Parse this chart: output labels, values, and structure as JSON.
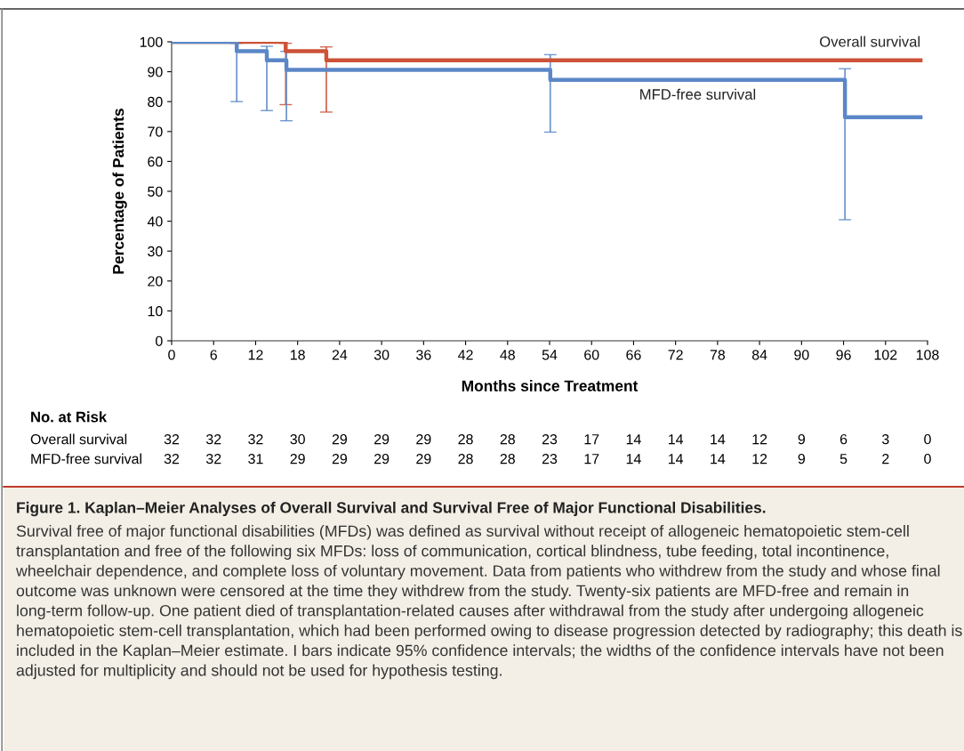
{
  "chart_data": {
    "type": "step",
    "title": "Figure 1. Kaplan–Meier Analyses of Overall Survival and Survival Free of Major Functional Disabilities.",
    "xlabel": "Months since Treatment",
    "ylabel": "Percentage of Patients",
    "series": [
      {
        "name": "Overall survival",
        "color": "#cc5238",
        "x": [
          0,
          16.3,
          22.1,
          107
        ],
        "values": [
          100,
          96.9,
          93.8,
          93.8
        ],
        "errors": [
          null,
          [
            79,
            99.5
          ],
          [
            76.5,
            98.3
          ],
          null
        ]
      },
      {
        "name": "MFD-free survival",
        "color": "#5b87c8",
        "x": [
          0,
          9.3,
          13.6,
          16.4,
          54.1,
          96.2,
          107
        ],
        "values": [
          100,
          96.9,
          93.8,
          90.6,
          87.3,
          74.8,
          74.8
        ],
        "errors": [
          null,
          [
            80,
            99.5
          ],
          [
            77,
            98.5
          ],
          [
            73.6,
            96.8
          ],
          [
            69.8,
            95.7
          ],
          [
            40.5,
            91
          ],
          null
        ]
      }
    ],
    "xlim": [
      0,
      108
    ],
    "xticks": [
      0,
      6,
      12,
      18,
      24,
      30,
      36,
      42,
      48,
      54,
      60,
      66,
      72,
      78,
      84,
      90,
      96,
      102,
      108
    ],
    "ylim": [
      0,
      100
    ],
    "yticks": [
      0,
      10,
      20,
      30,
      40,
      50,
      60,
      70,
      80,
      90,
      100
    ],
    "grid": false,
    "legend": false,
    "line_style": "solid",
    "marker": "none",
    "annotations": [
      "No. at Risk",
      "32 32 32 30 29 29 29 28 28 23 17 14 14 14 12 9 6 3 0",
      "32 32 31 29 29 29 29 28 28 23 17 14 14 14 12 9 5 2 0",
      "Survival free of major functional disabilities (MFDs) was defined as survival without receipt of allogeneic hematopoietic stem-cell transplantation and free of the following six MFDs: loss of communication, cortical blindness, tube feeding, total incontinence, wheelchair dependence, and complete loss of voluntary movement. Data from patients who withdrew from the study and whose final outcome was unknown were censored at the time they withdrew from the study. Twenty-six patients are MFD-free and remain in long-term follow-up. One patient died of transplantation-related causes after withdrawal from the study after undergoing allogeneic hematopoietic stem-cell transplantation, which had been performed owing to disease progression detected by radiography; this death is included in the Kaplan–Meier estimate. I bars indicate 95% confidence intervals; the widths of the confidence intervals have not been adjusted for multiplicity and should not be used for hypothesis testing."
    ]
  }
}
